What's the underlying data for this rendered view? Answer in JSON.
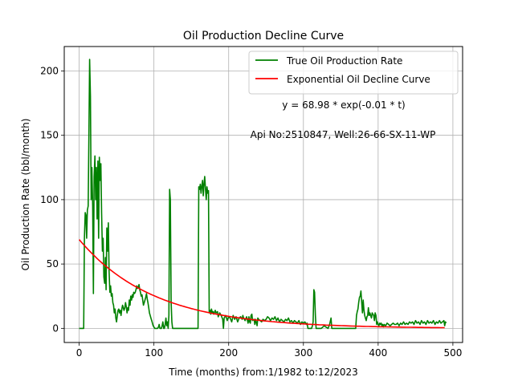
{
  "chart_data": {
    "type": "line",
    "title": "Oil Production Decline Curve",
    "xlabel": "Time (months) from:1/1982 to:12/2023",
    "ylabel": "Oil Production Rate (bbl/month)",
    "xlim": [
      -20,
      513
    ],
    "ylim": [
      -11,
      219
    ],
    "x_ticks": [
      0,
      100,
      200,
      300,
      400,
      500
    ],
    "y_ticks": [
      0,
      50,
      100,
      150,
      200
    ],
    "grid": true,
    "legend_position": "top-right",
    "annotations": [
      "y = 68.98 * exp(-0.01 * t)",
      "Api No:2510847, Well:26-66-SX-11-WP"
    ],
    "series": [
      {
        "name": "True Oil Production Rate",
        "color": "#008000",
        "points": [
          [
            0,
            0
          ],
          [
            6,
            0
          ],
          [
            7,
            70
          ],
          [
            8,
            90
          ],
          [
            9,
            88
          ],
          [
            10,
            70
          ],
          [
            11,
            92
          ],
          [
            12,
            95
          ],
          [
            13,
            150
          ],
          [
            14,
            209
          ],
          [
            15,
            180
          ],
          [
            16,
            100
          ],
          [
            17,
            125
          ],
          [
            18,
            95
          ],
          [
            19,
            27
          ],
          [
            20,
            118
          ],
          [
            21,
            134
          ],
          [
            22,
            100
          ],
          [
            23,
            125
          ],
          [
            24,
            85
          ],
          [
            25,
            130
          ],
          [
            26,
            70
          ],
          [
            27,
            133
          ],
          [
            28,
            115
          ],
          [
            29,
            128
          ],
          [
            30,
            90
          ],
          [
            31,
            60
          ],
          [
            32,
            70
          ],
          [
            33,
            40
          ],
          [
            34,
            35
          ],
          [
            35,
            55
          ],
          [
            36,
            30
          ],
          [
            37,
            78
          ],
          [
            38,
            60
          ],
          [
            39,
            82
          ],
          [
            40,
            45
          ],
          [
            41,
            28
          ],
          [
            42,
            33
          ],
          [
            43,
            25
          ],
          [
            44,
            27
          ],
          [
            45,
            20
          ],
          [
            46,
            18
          ],
          [
            47,
            12
          ],
          [
            48,
            15
          ],
          [
            49,
            8
          ],
          [
            50,
            5
          ],
          [
            51,
            10
          ],
          [
            52,
            14
          ],
          [
            53,
            15
          ],
          [
            54,
            12
          ],
          [
            55,
            14
          ],
          [
            56,
            10
          ],
          [
            57,
            15
          ],
          [
            58,
            18
          ],
          [
            59,
            16
          ],
          [
            60,
            14
          ],
          [
            61,
            16
          ],
          [
            62,
            20
          ],
          [
            63,
            17
          ],
          [
            64,
            12
          ],
          [
            65,
            16
          ],
          [
            66,
            14
          ],
          [
            67,
            22
          ],
          [
            68,
            18
          ],
          [
            69,
            25
          ],
          [
            70,
            22
          ],
          [
            71,
            26
          ],
          [
            72,
            24
          ],
          [
            73,
            28
          ],
          [
            74,
            27
          ],
          [
            75,
            28
          ],
          [
            76,
            30
          ],
          [
            77,
            33
          ],
          [
            78,
            31
          ],
          [
            79,
            32
          ],
          [
            80,
            34
          ],
          [
            81,
            30
          ],
          [
            82,
            28
          ],
          [
            83,
            25
          ],
          [
            84,
            26
          ],
          [
            85,
            22
          ],
          [
            86,
            18
          ],
          [
            87,
            20
          ],
          [
            88,
            22
          ],
          [
            89,
            24
          ],
          [
            90,
            27
          ],
          [
            91,
            23
          ],
          [
            92,
            20
          ],
          [
            93,
            16
          ],
          [
            94,
            12
          ],
          [
            95,
            10
          ],
          [
            96,
            8
          ],
          [
            97,
            6
          ],
          [
            98,
            4
          ],
          [
            99,
            2
          ],
          [
            100,
            1
          ],
          [
            101,
            0
          ],
          [
            102,
            0
          ],
          [
            103,
            0
          ],
          [
            104,
            0
          ],
          [
            105,
            0
          ],
          [
            106,
            1
          ],
          [
            107,
            3
          ],
          [
            108,
            0
          ],
          [
            109,
            0
          ],
          [
            110,
            0
          ],
          [
            111,
            2
          ],
          [
            112,
            5
          ],
          [
            113,
            0
          ],
          [
            114,
            0
          ],
          [
            115,
            3
          ],
          [
            116,
            8
          ],
          [
            117,
            2
          ],
          [
            118,
            5
          ],
          [
            119,
            0
          ],
          [
            120,
            10
          ],
          [
            121,
            108
          ],
          [
            122,
            100
          ],
          [
            123,
            20
          ],
          [
            124,
            5
          ],
          [
            125,
            0
          ],
          [
            130,
            0
          ],
          [
            140,
            0
          ],
          [
            150,
            0
          ],
          [
            158,
            0
          ],
          [
            159,
            0
          ],
          [
            160,
            110
          ],
          [
            161,
            108
          ],
          [
            162,
            112
          ],
          [
            163,
            105
          ],
          [
            164,
            110
          ],
          [
            165,
            115
          ],
          [
            166,
            103
          ],
          [
            167,
            112
          ],
          [
            168,
            118
          ],
          [
            169,
            108
          ],
          [
            170,
            100
          ],
          [
            171,
            110
          ],
          [
            172,
            105
          ],
          [
            173,
            107
          ],
          [
            174,
            12
          ],
          [
            175,
            14
          ],
          [
            176,
            11
          ],
          [
            177,
            15
          ],
          [
            178,
            12
          ],
          [
            179,
            13
          ],
          [
            180,
            11
          ],
          [
            182,
            14
          ],
          [
            183,
            12
          ],
          [
            185,
            13
          ],
          [
            186,
            9
          ],
          [
            188,
            12
          ],
          [
            190,
            10
          ],
          [
            192,
            7
          ],
          [
            193,
            0
          ],
          [
            194,
            8
          ],
          [
            196,
            10
          ],
          [
            198,
            6
          ],
          [
            200,
            9
          ],
          [
            202,
            8
          ],
          [
            204,
            5
          ],
          [
            206,
            10
          ],
          [
            208,
            7
          ],
          [
            210,
            9
          ],
          [
            212,
            5
          ],
          [
            214,
            8
          ],
          [
            216,
            9
          ],
          [
            218,
            7
          ],
          [
            219,
            10
          ],
          [
            220,
            8
          ],
          [
            222,
            6
          ],
          [
            224,
            9
          ],
          [
            226,
            4
          ],
          [
            227,
            9
          ],
          [
            228,
            5
          ],
          [
            229,
            4
          ],
          [
            230,
            10
          ],
          [
            231,
            11
          ],
          [
            232,
            6
          ],
          [
            234,
            7
          ],
          [
            235,
            3
          ],
          [
            236,
            7
          ],
          [
            238,
            2
          ],
          [
            239,
            8
          ],
          [
            240,
            7
          ],
          [
            242,
            6
          ],
          [
            244,
            5
          ],
          [
            246,
            7
          ],
          [
            248,
            6
          ],
          [
            250,
            7
          ],
          [
            252,
            9
          ],
          [
            254,
            8
          ],
          [
            256,
            6
          ],
          [
            258,
            8
          ],
          [
            260,
            7
          ],
          [
            262,
            9
          ],
          [
            264,
            6
          ],
          [
            266,
            8
          ],
          [
            268,
            5
          ],
          [
            270,
            7
          ],
          [
            272,
            6
          ],
          [
            274,
            5
          ],
          [
            276,
            7
          ],
          [
            278,
            6
          ],
          [
            280,
            8
          ],
          [
            282,
            5
          ],
          [
            284,
            6
          ],
          [
            286,
            4
          ],
          [
            288,
            6
          ],
          [
            290,
            5
          ],
          [
            292,
            4
          ],
          [
            294,
            6
          ],
          [
            296,
            3
          ],
          [
            298,
            5
          ],
          [
            300,
            4
          ],
          [
            302,
            5
          ],
          [
            304,
            3
          ],
          [
            305,
            4
          ],
          [
            306,
            0
          ],
          [
            307,
            0
          ],
          [
            308,
            0
          ],
          [
            309,
            0
          ],
          [
            310,
            0
          ],
          [
            311,
            0
          ],
          [
            312,
            2
          ],
          [
            313,
            5
          ],
          [
            314,
            30
          ],
          [
            315,
            28
          ],
          [
            316,
            10
          ],
          [
            317,
            0
          ],
          [
            318,
            0
          ],
          [
            320,
            0
          ],
          [
            322,
            0
          ],
          [
            324,
            0
          ],
          [
            326,
            1
          ],
          [
            328,
            2
          ],
          [
            330,
            1
          ],
          [
            333,
            0
          ],
          [
            335,
            3
          ],
          [
            337,
            8
          ],
          [
            338,
            0
          ],
          [
            339,
            0
          ],
          [
            340,
            0
          ],
          [
            345,
            0
          ],
          [
            350,
            0
          ],
          [
            355,
            0
          ],
          [
            360,
            0
          ],
          [
            365,
            0
          ],
          [
            368,
            0
          ],
          [
            370,
            0
          ],
          [
            371,
            10
          ],
          [
            372,
            13
          ],
          [
            373,
            15
          ],
          [
            374,
            20
          ],
          [
            375,
            24
          ],
          [
            376,
            25
          ],
          [
            377,
            29
          ],
          [
            378,
            20
          ],
          [
            379,
            12
          ],
          [
            380,
            22
          ],
          [
            381,
            14
          ],
          [
            382,
            10
          ],
          [
            383,
            8
          ],
          [
            384,
            6
          ],
          [
            385,
            9
          ],
          [
            386,
            10
          ],
          [
            387,
            16
          ],
          [
            388,
            10
          ],
          [
            389,
            12
          ],
          [
            390,
            10
          ],
          [
            391,
            8
          ],
          [
            392,
            12
          ],
          [
            393,
            11
          ],
          [
            394,
            10
          ],
          [
            395,
            6
          ],
          [
            396,
            12
          ],
          [
            397,
            10
          ],
          [
            398,
            3
          ],
          [
            399,
            5
          ],
          [
            400,
            3
          ],
          [
            401,
            2
          ],
          [
            402,
            4
          ],
          [
            403,
            3
          ],
          [
            404,
            4
          ],
          [
            405,
            2
          ],
          [
            406,
            3
          ],
          [
            407,
            1
          ],
          [
            408,
            3
          ],
          [
            410,
            2
          ],
          [
            412,
            4
          ],
          [
            414,
            3
          ],
          [
            416,
            2
          ],
          [
            418,
            3
          ],
          [
            420,
            4
          ],
          [
            422,
            3
          ],
          [
            424,
            3
          ],
          [
            426,
            4
          ],
          [
            428,
            2
          ],
          [
            430,
            4
          ],
          [
            432,
            3
          ],
          [
            434,
            5
          ],
          [
            436,
            3
          ],
          [
            438,
            4
          ],
          [
            440,
            3
          ],
          [
            442,
            5
          ],
          [
            444,
            4
          ],
          [
            446,
            5
          ],
          [
            448,
            3
          ],
          [
            450,
            6
          ],
          [
            452,
            4
          ],
          [
            454,
            5
          ],
          [
            456,
            3
          ],
          [
            458,
            6
          ],
          [
            460,
            4
          ],
          [
            462,
            5
          ],
          [
            464,
            3
          ],
          [
            466,
            6
          ],
          [
            468,
            4
          ],
          [
            470,
            5
          ],
          [
            472,
            4
          ],
          [
            474,
            6
          ],
          [
            476,
            3
          ],
          [
            478,
            5
          ],
          [
            480,
            4
          ],
          [
            482,
            6
          ],
          [
            484,
            4
          ],
          [
            486,
            5
          ],
          [
            488,
            6
          ],
          [
            489,
            2
          ],
          [
            490,
            5
          ],
          [
            491,
            4
          ]
        ]
      },
      {
        "name": "Exponential Oil Decline Curve",
        "color": "#ff0000",
        "function": "68.98 * exp(-0.01 * t)",
        "t_range": [
          0,
          491
        ]
      }
    ]
  }
}
